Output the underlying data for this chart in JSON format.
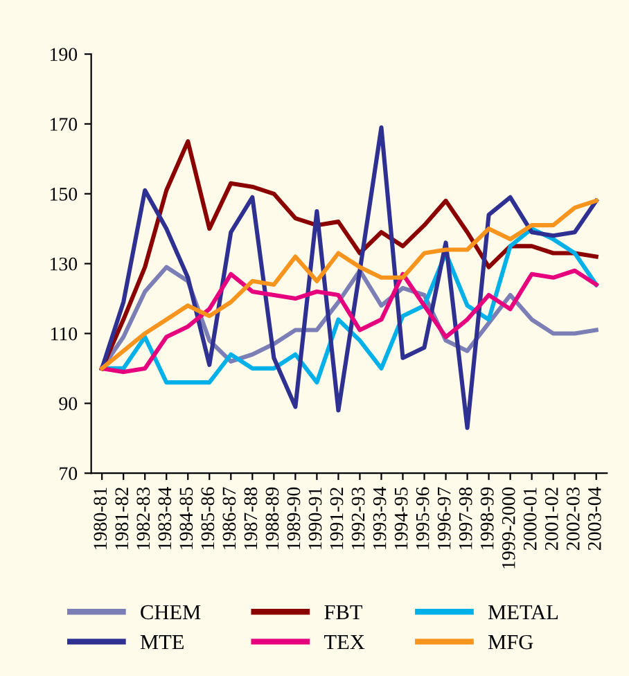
{
  "chart_data": {
    "type": "line",
    "categories": [
      "1980-81",
      "1981-82",
      "1982-83",
      "1983-84",
      "1984-85",
      "1985-86",
      "1986-87",
      "1987-88",
      "1988-89",
      "1989-90",
      "1990-91",
      "1991-92",
      "1992-93",
      "1993-94",
      "1994-95",
      "1995-96",
      "1996-97",
      "1997-98",
      "1998-99",
      "1999-2000",
      "2000-01",
      "2001-02",
      "2002-03",
      "2003-04"
    ],
    "series": [
      {
        "name": "CHEM",
        "color": "#7b7fb5",
        "values": [
          100,
          109,
          122,
          129,
          125,
          108,
          102,
          104,
          107,
          111,
          111,
          119,
          128,
          118,
          123,
          121,
          108,
          105,
          113,
          121,
          114,
          110,
          110,
          111
        ]
      },
      {
        "name": "FBT",
        "color": "#8b0000",
        "values": [
          100,
          114,
          129,
          151,
          165,
          140,
          153,
          152,
          150,
          143,
          141,
          142,
          133,
          139,
          135,
          141,
          148,
          139,
          129,
          135,
          135,
          133,
          133,
          132
        ]
      },
      {
        "name": "METAL",
        "color": "#00b0e8",
        "values": [
          100,
          100,
          109,
          96,
          96,
          96,
          104,
          100,
          100,
          104,
          96,
          114,
          108,
          100,
          115,
          118,
          133,
          118,
          114,
          135,
          140,
          137,
          133,
          124
        ]
      },
      {
        "name": "MTE",
        "color": "#2e3192",
        "values": [
          100,
          119,
          151,
          140,
          126,
          101,
          139,
          149,
          103,
          89,
          145,
          88,
          128,
          169,
          103,
          106,
          136,
          83,
          144,
          149,
          139,
          138,
          139,
          148
        ]
      },
      {
        "name": "TEX",
        "color": "#e6007e",
        "values": [
          100,
          99,
          100,
          109,
          112,
          117,
          127,
          122,
          121,
          120,
          122,
          121,
          111,
          114,
          127,
          118,
          109,
          114,
          121,
          117,
          127,
          126,
          128,
          124
        ]
      },
      {
        "name": "MFG",
        "color": "#f7941d",
        "values": [
          100,
          105,
          110,
          114,
          118,
          115,
          119,
          125,
          124,
          132,
          125,
          133,
          129,
          126,
          126,
          133,
          134,
          134,
          140,
          137,
          141,
          141,
          146,
          148
        ]
      }
    ],
    "ylim": [
      70,
      190
    ],
    "yticks": [
      70,
      90,
      110,
      130,
      150,
      170,
      190
    ],
    "grid": false,
    "legend": "bottom",
    "marker": "none",
    "line_style": "solid"
  }
}
